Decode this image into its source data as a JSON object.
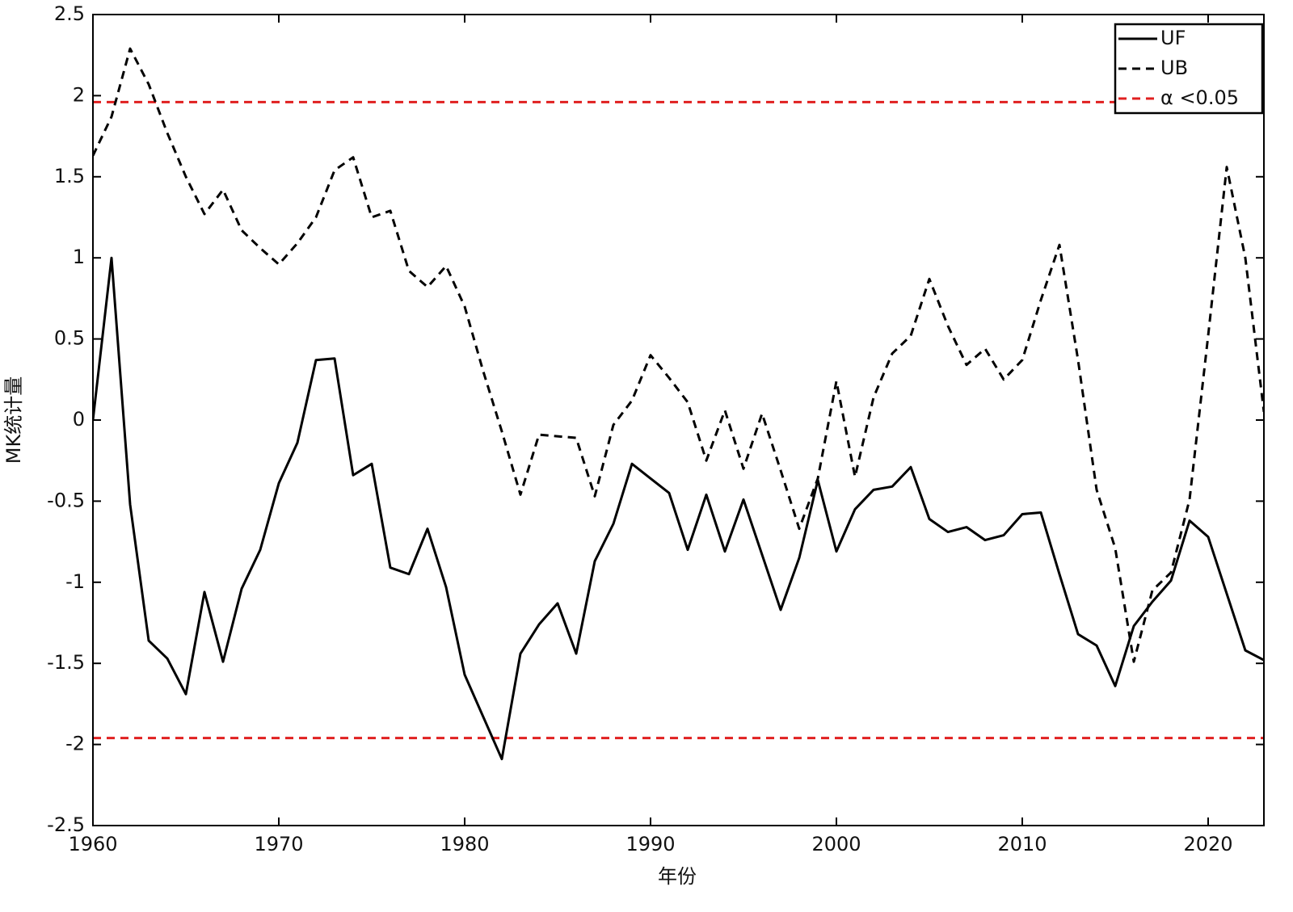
{
  "chart_data": {
    "type": "line",
    "xlabel": "年份",
    "ylabel": "MK统计量",
    "x": [
      1960,
      1961,
      1962,
      1963,
      1964,
      1965,
      1966,
      1967,
      1968,
      1969,
      1970,
      1971,
      1972,
      1973,
      1974,
      1975,
      1976,
      1977,
      1978,
      1979,
      1980,
      1981,
      1982,
      1983,
      1984,
      1985,
      1986,
      1987,
      1988,
      1989,
      1990,
      1991,
      1992,
      1993,
      1994,
      1995,
      1996,
      1997,
      1998,
      1999,
      2000,
      2001,
      2002,
      2003,
      2004,
      2005,
      2006,
      2007,
      2008,
      2009,
      2010,
      2011,
      2012,
      2013,
      2014,
      2015,
      2016,
      2017,
      2018,
      2019,
      2020,
      2021,
      2022,
      2023
    ],
    "series": [
      {
        "name": "UF",
        "color": "#000000",
        "dash": "solid",
        "values": [
          0,
          1.0,
          -0.52,
          -1.36,
          -1.47,
          -1.69,
          -1.06,
          -1.49,
          -1.04,
          -0.8,
          -0.39,
          -0.14,
          0.37,
          0.38,
          -0.34,
          -0.27,
          -0.91,
          -0.95,
          -0.67,
          -1.03,
          -1.57,
          -1.83,
          -2.09,
          -1.44,
          -1.26,
          -1.13,
          -1.44,
          -0.87,
          -0.64,
          -0.27,
          -0.36,
          -0.45,
          -0.8,
          -0.46,
          -0.81,
          -0.49,
          -0.83,
          -1.17,
          -0.85,
          -0.37,
          -0.81,
          -0.55,
          -0.43,
          -0.41,
          -0.29,
          -0.61,
          -0.69,
          -0.66,
          -0.74,
          -0.71,
          -0.58,
          -0.57,
          -0.95,
          -1.32,
          -1.39,
          -1.64,
          -1.27,
          -1.12,
          -0.99,
          -0.62,
          -0.72,
          -1.07,
          -1.42,
          -1.48
        ]
      },
      {
        "name": "UB",
        "color": "#000000",
        "dash": "dashed",
        "values": [
          1.63,
          1.87,
          2.29,
          2.07,
          1.77,
          1.5,
          1.27,
          1.42,
          1.17,
          1.06,
          0.96,
          1.09,
          1.25,
          1.54,
          1.62,
          1.25,
          1.29,
          0.92,
          0.82,
          0.95,
          0.7,
          0.3,
          -0.07,
          -0.46,
          -0.09,
          -0.1,
          -0.11,
          -0.47,
          -0.03,
          0.12,
          0.4,
          0.26,
          0.11,
          -0.25,
          0.06,
          -0.3,
          0.04,
          -0.31,
          -0.67,
          -0.36,
          0.24,
          -0.35,
          0.14,
          0.41,
          0.52,
          0.87,
          0.58,
          0.34,
          0.44,
          0.25,
          0.37,
          0.74,
          1.08,
          0.37,
          -0.43,
          -0.79,
          -1.49,
          -1.05,
          -0.94,
          -0.49,
          0.52,
          1.56,
          1.0,
          0.05
        ]
      }
    ],
    "threshold": {
      "name": "α <0.05",
      "color": "#e02020",
      "values": [
        1.96,
        -1.96
      ]
    },
    "xlim": [
      1960,
      2023
    ],
    "xticks": [
      1960,
      1970,
      1980,
      1990,
      2000,
      2010,
      2020
    ],
    "ylim": [
      -2.5,
      2.5
    ],
    "yticks": [
      -2.5,
      -2,
      -1.5,
      -1,
      -0.5,
      0,
      0.5,
      1,
      1.5,
      2,
      2.5
    ],
    "legend": "top-right",
    "grid": false
  }
}
